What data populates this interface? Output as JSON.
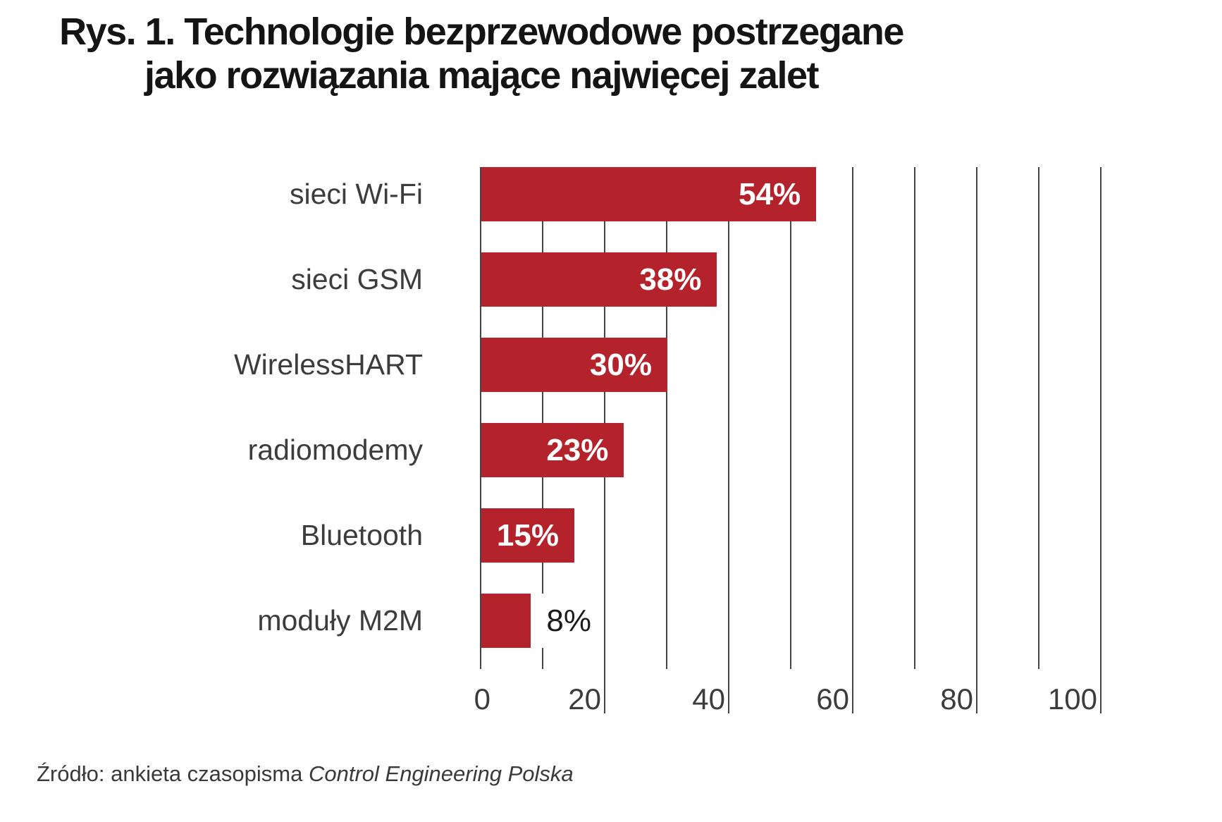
{
  "title": {
    "line1": "Rys. 1. Technologie bezprzewodowe postrzegane",
    "line2": "jako rozwiązania mające najwięcej zalet"
  },
  "source": {
    "prefix": "Źródło: ankieta czasopisma ",
    "italic_part": "Control Engineering Polska"
  },
  "colors": {
    "bar": "#b4222b",
    "gridline": "#464646",
    "inside_value_label": "#ffffff",
    "outside_value_label": "#1b1b1b",
    "axis_text": "#3c3c3c"
  },
  "chart_data": {
    "type": "bar",
    "orientation": "horizontal",
    "title": "Rys. 1. Technologie bezprzewodowe postrzegane jako rozwiązania mające najwięcej zalet",
    "categories": [
      "sieci Wi-Fi",
      "sieci GSM",
      "WirelessHART",
      "radiomodemy",
      "Bluetooth",
      "moduły M2M"
    ],
    "values": [
      54,
      38,
      30,
      23,
      15,
      8
    ],
    "value_labels": [
      "54%",
      "38%",
      "30%",
      "23%",
      "15%",
      "8%"
    ],
    "xlabel": "",
    "ylabel": "",
    "xlim": [
      0,
      100
    ],
    "xticks": [
      0,
      20,
      40,
      60,
      80,
      100
    ],
    "minor_grid_step": 10,
    "grid": true,
    "legend": false,
    "label_inside_threshold": 10
  }
}
